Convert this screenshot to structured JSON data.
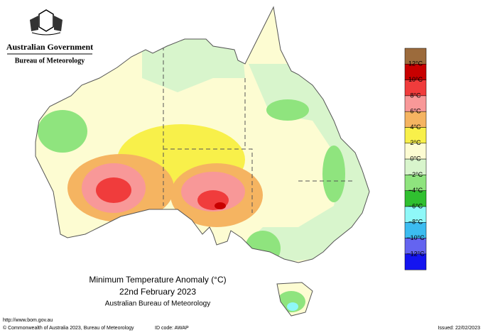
{
  "header": {
    "title": "Australian Government",
    "subtitle": "Bureau of Meteorology"
  },
  "caption": {
    "title": "Minimum Temperature Anomaly (°C)",
    "date": "22nd February 2023",
    "source": "Australian Bureau of Meteorology"
  },
  "legend": {
    "colors": [
      "#9c6b3c",
      "#c80000",
      "#f03c3c",
      "#f89898",
      "#f5b461",
      "#f8f04a",
      "#fdfcd2",
      "#d8f5cc",
      "#8fe47e",
      "#30c030",
      "#8ff8f8",
      "#3cbcf0",
      "#6464f0",
      "#1414f0"
    ],
    "labels": [
      "12°C",
      "10°C",
      "8°C",
      "6°C",
      "4°C",
      "2°C",
      "0°C",
      "−2°C",
      "−4°C",
      "−6°C",
      "−8°C",
      "−10°C",
      "−12°C"
    ]
  },
  "footer": {
    "url": "http://www.bom.gov.au",
    "copyright": "© Commonwealth of Australia 2023, Bureau of Meteorology",
    "id_code": "ID code: AWAP",
    "issued": "Issued: 22/02/2023"
  }
}
